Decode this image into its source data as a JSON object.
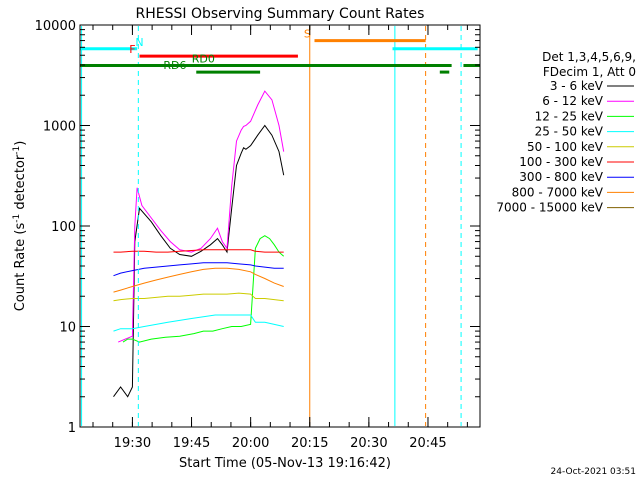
{
  "chart_data": {
    "type": "line",
    "title": "RHESSI Observing Summary Count Rates",
    "xlabel": "Start Time (05-Nov-13 19:16:42)",
    "ylabel_main": "Count Rate (s",
    "ylabel_sup1": "-1",
    "ylabel_mid": " detector",
    "ylabel_sup2": "-1",
    "ylabel_end": ")",
    "y_scale": "log",
    "ylim": [
      1,
      10000
    ],
    "xlim": [
      19.2783,
      20.97
    ],
    "y_ticks": [
      {
        "value": 1,
        "label": "1"
      },
      {
        "value": 10,
        "label": "10"
      },
      {
        "value": 100,
        "label": "100"
      },
      {
        "value": 1000,
        "label": "1000"
      },
      {
        "value": 10000,
        "label": "10000"
      }
    ],
    "x_ticks": [
      {
        "value": 19.5,
        "label": "19:30"
      },
      {
        "value": 19.75,
        "label": "19:45"
      },
      {
        "value": 20.0,
        "label": "20:00"
      },
      {
        "value": 20.25,
        "label": "20:15"
      },
      {
        "value": 20.5,
        "label": "20:30"
      },
      {
        "value": 20.75,
        "label": "20:45"
      }
    ],
    "legend": {
      "header1": "Det 1,3,4,5,6,9,",
      "header2": "FDecim 1, Att 0",
      "placement": "right"
    },
    "series": [
      {
        "name": "3 - 6 keV",
        "color": "#000000",
        "x": [
          19.42,
          19.45,
          19.48,
          19.5,
          19.51,
          19.53,
          19.58,
          19.62,
          19.66,
          19.7,
          19.75,
          19.79,
          19.83,
          19.86,
          19.88,
          19.9,
          19.92,
          19.94,
          19.96,
          19.97,
          19.98,
          20.0,
          20.03,
          20.06,
          20.09,
          20.12,
          20.14
        ],
        "y": [
          2,
          2.5,
          2,
          2.5,
          70,
          150,
          110,
          80,
          60,
          52,
          50,
          56,
          65,
          75,
          65,
          55,
          150,
          400,
          530,
          600,
          580,
          630,
          800,
          1000,
          800,
          550,
          320
        ]
      },
      {
        "name": "6 - 12 keV",
        "color": "#ff00ff",
        "x": [
          19.44,
          19.47,
          19.5,
          19.51,
          19.52,
          19.54,
          19.58,
          19.62,
          19.66,
          19.7,
          19.75,
          19.79,
          19.83,
          19.86,
          19.88,
          19.9,
          19.92,
          19.94,
          19.96,
          19.97,
          19.98,
          20.0,
          20.03,
          20.06,
          20.09,
          20.12,
          20.14
        ],
        "y": [
          7,
          7.5,
          8,
          100,
          240,
          160,
          120,
          90,
          70,
          58,
          55,
          60,
          75,
          95,
          70,
          60,
          250,
          700,
          900,
          980,
          1000,
          1100,
          1600,
          2200,
          1800,
          1000,
          550
        ]
      },
      {
        "name": "12 - 25 keV",
        "color": "#00ff00",
        "x": [
          19.46,
          19.48,
          19.5,
          19.53,
          19.58,
          19.64,
          19.7,
          19.76,
          19.8,
          19.84,
          19.88,
          19.92,
          19.96,
          20.0,
          20.02,
          20.04,
          20.06,
          20.08,
          20.1,
          20.12,
          20.14
        ],
        "y": [
          7,
          7.5,
          7.5,
          7,
          7.5,
          7.8,
          8,
          8.5,
          9,
          9,
          9.5,
          10,
          10,
          10.5,
          60,
          75,
          80,
          75,
          65,
          55,
          50
        ]
      },
      {
        "name": "25 - 50 keV",
        "color": "#00ffff",
        "x": [
          19.42,
          19.45,
          19.5,
          19.55,
          19.6,
          19.65,
          19.7,
          19.75,
          19.8,
          19.85,
          19.9,
          19.95,
          20.0,
          20.02,
          20.06,
          20.1,
          20.14
        ],
        "y": [
          9,
          9.5,
          9.5,
          10,
          10.5,
          11,
          11.5,
          12,
          12.5,
          13,
          13,
          13,
          13,
          11,
          11,
          10.5,
          10
        ]
      },
      {
        "name": "50 - 100 keV",
        "color": "#cccc00",
        "x": [
          19.42,
          19.45,
          19.5,
          19.55,
          19.6,
          19.65,
          19.7,
          19.75,
          19.8,
          19.85,
          19.9,
          19.95,
          20.0,
          20.02,
          20.06,
          20.1,
          20.14
        ],
        "y": [
          18,
          18.5,
          19,
          19,
          19.5,
          20,
          20,
          20.5,
          21,
          21,
          21,
          21.5,
          21,
          19,
          19,
          18.5,
          18
        ]
      },
      {
        "name": "100 - 300 keV",
        "color": "#ff0000",
        "x": [
          19.42,
          19.45,
          19.5,
          19.55,
          19.6,
          19.65,
          19.7,
          19.75,
          19.8,
          19.85,
          19.9,
          19.95,
          20.0,
          20.02,
          20.06,
          20.1,
          20.14
        ],
        "y": [
          55,
          55,
          56,
          56,
          55,
          55,
          56,
          57,
          58,
          58,
          58,
          58,
          58,
          56,
          55,
          55,
          55
        ]
      },
      {
        "name": "300 - 800 keV",
        "color": "#0000ff",
        "x": [
          19.42,
          19.45,
          19.5,
          19.55,
          19.6,
          19.65,
          19.7,
          19.75,
          19.8,
          19.85,
          19.9,
          19.95,
          20.0,
          20.02,
          20.06,
          20.1,
          20.14
        ],
        "y": [
          32,
          34,
          36,
          38,
          39,
          40,
          41,
          42,
          43,
          43,
          43,
          42,
          41,
          40,
          39,
          38,
          38
        ]
      },
      {
        "name": "800 - 7000 keV",
        "color": "#ff8000",
        "x": [
          19.42,
          19.45,
          19.5,
          19.55,
          19.6,
          19.65,
          19.7,
          19.75,
          19.8,
          19.85,
          19.9,
          19.95,
          20.0,
          20.02,
          20.06,
          20.1,
          20.14
        ],
        "y": [
          22,
          23,
          25,
          27,
          29,
          31,
          33,
          35,
          37,
          38,
          38,
          37,
          35,
          33,
          30,
          27,
          25
        ]
      },
      {
        "name": "7000 - 15000 keV",
        "color": "#806000",
        "x": [
          19.42,
          19.5,
          19.6,
          19.7,
          19.8,
          19.9,
          20.0,
          20.1,
          20.14
        ],
        "y": [
          1,
          1,
          1,
          1,
          1,
          1,
          1,
          1,
          1
        ]
      }
    ],
    "annotations": {
      "date_stamp": "24-Oct-2021 03:51",
      "bars": [
        {
          "label": "N",
          "color": "#00ffff",
          "y": 5800,
          "segments": [
            [
              19.28,
              19.52
            ],
            [
              20.6,
              20.96
            ]
          ],
          "label_x": 19.53
        },
        {
          "label": "S",
          "color": "#ff8000",
          "y": 7000,
          "segments": [
            [
              20.27,
              20.74
            ]
          ],
          "label_x": 20.24
        },
        {
          "label": "F",
          "color": "#ff0000",
          "y": 4900,
          "segments": [
            [
              19.53,
              20.2
            ]
          ],
          "label_x": 19.5
        },
        {
          "label": "RD0",
          "color": "#008000",
          "y": 3950,
          "segments": [
            [
              19.28,
              20.85
            ],
            [
              20.9,
              20.97
            ]
          ],
          "label_x": 19.8
        },
        {
          "label": "RD6",
          "color": "#008000",
          "y": 3400,
          "segments": [
            [
              19.77,
              20.04
            ],
            [
              20.8,
              20.84
            ]
          ],
          "label_x": 19.68
        }
      ],
      "vlines": [
        {
          "x": 19.285,
          "color": "#00ffff",
          "dashed": false
        },
        {
          "x": 19.525,
          "color": "#00ffff",
          "dashed": true
        },
        {
          "x": 20.25,
          "color": "#ff8000",
          "dashed": false
        },
        {
          "x": 20.61,
          "color": "#00ffff",
          "dashed": false
        },
        {
          "x": 20.74,
          "color": "#ff8000",
          "dashed": true
        },
        {
          "x": 20.89,
          "color": "#00ffff",
          "dashed": true
        }
      ]
    }
  }
}
